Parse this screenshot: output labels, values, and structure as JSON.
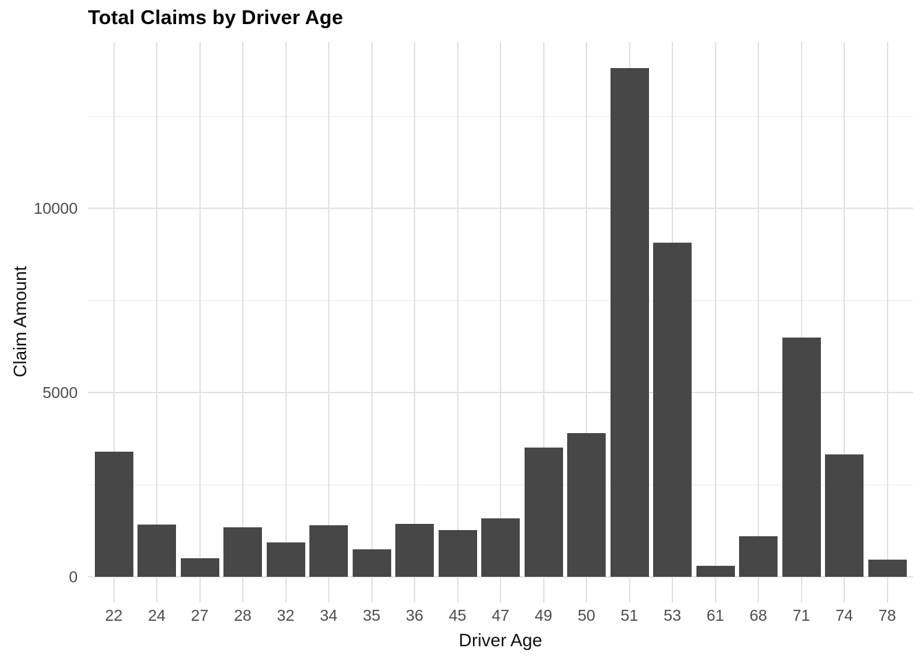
{
  "chart_data": {
    "type": "bar",
    "title": "Total Claims by Driver Age",
    "xlabel": "Driver Age",
    "ylabel": "Claim Amount",
    "categories": [
      "22",
      "24",
      "27",
      "28",
      "32",
      "34",
      "35",
      "36",
      "45",
      "47",
      "49",
      "50",
      "51",
      "53",
      "61",
      "68",
      "71",
      "74",
      "78"
    ],
    "values": [
      3400,
      1425,
      510,
      1350,
      930,
      1395,
      750,
      1430,
      1270,
      1590,
      3510,
      3900,
      13810,
      9070,
      305,
      1100,
      6500,
      3330,
      470
    ],
    "y_axis": {
      "tick_labels": [
        "0",
        "5000",
        "10000"
      ],
      "ticks": [
        0,
        5000,
        10000
      ],
      "minor_ticks": [
        2500,
        7500,
        12500
      ],
      "range": [
        -690,
        14520
      ]
    },
    "x_axis": {
      "type": "categorical"
    },
    "legend": "none",
    "grid": "major-and-minor, vertical lines at category centers",
    "colors": {
      "bar": "#474747",
      "grid_major": "#e2e2e2",
      "grid_minor": "#ececec",
      "tick_label": "#4d4d4d",
      "axis_title": "#111111",
      "title": "#000000",
      "background": "#ffffff"
    }
  }
}
